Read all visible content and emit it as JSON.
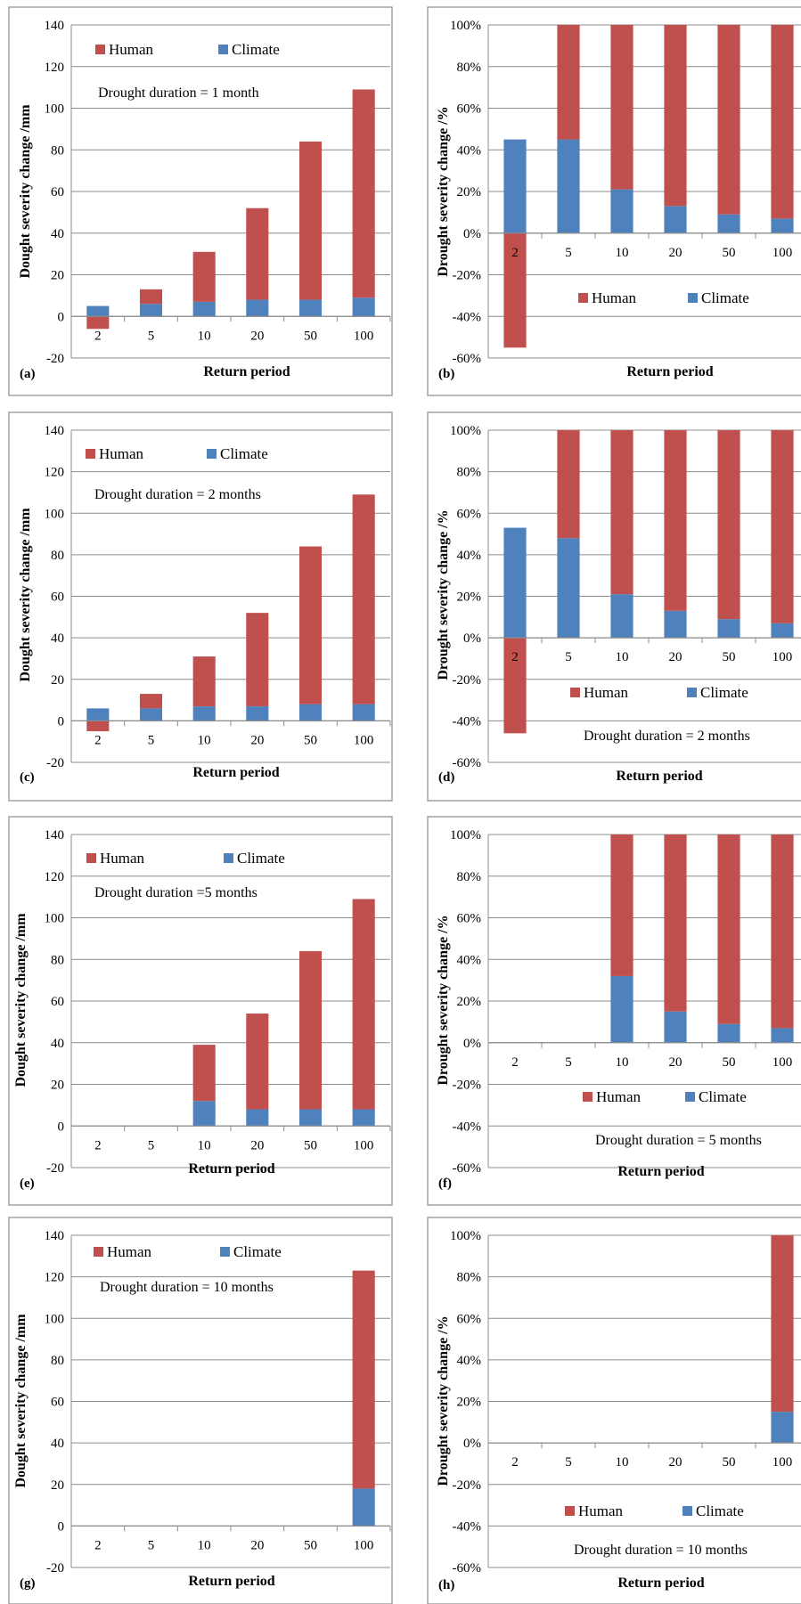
{
  "legend": {
    "human": "Human",
    "climate": "Climate"
  },
  "colors": {
    "human": "#C0504D",
    "climate": "#4F81BD",
    "grid": "#8C8C8C"
  },
  "chart_data": [
    {
      "type": "bar",
      "stacked": true,
      "panel_label": "(a)",
      "categories": [
        "2",
        "5",
        "10",
        "20",
        "50",
        "100"
      ],
      "series": [
        {
          "name": "Climate",
          "values": [
            5,
            6,
            7,
            8,
            8,
            9
          ]
        },
        {
          "name": "Human",
          "values": [
            -6,
            7,
            24,
            44,
            76,
            100
          ]
        }
      ],
      "xlabel": "Return period",
      "ylabel": "Dought severity change /mm",
      "ylim": [
        -20,
        140
      ],
      "yticks": [
        "-20",
        "0",
        "20",
        "40",
        "60",
        "80",
        "100",
        "120",
        "140"
      ],
      "annotation": "Drought duration = 1 month",
      "legend_position": "top"
    },
    {
      "type": "bar",
      "stacked": true,
      "panel_label": "(b)",
      "categories": [
        "2",
        "5",
        "10",
        "20",
        "50",
        "100"
      ],
      "series": [
        {
          "name": "Climate",
          "values": [
            45,
            45,
            21,
            13,
            9,
            7
          ]
        },
        {
          "name": "Human",
          "values": [
            -55,
            55,
            79,
            87,
            91,
            93
          ]
        }
      ],
      "xlabel": "Return period",
      "ylabel": "Drought severity change  /%",
      "ylim": [
        -60,
        100
      ],
      "yticks": [
        "-60%",
        "-40%",
        "-20%",
        "0%",
        "20%",
        "40%",
        "60%",
        "80%",
        "100%"
      ],
      "annotation": "",
      "legend_position": "middle"
    },
    {
      "type": "bar",
      "stacked": true,
      "panel_label": "(c)",
      "categories": [
        "2",
        "5",
        "10",
        "20",
        "50",
        "100"
      ],
      "series": [
        {
          "name": "Climate",
          "values": [
            6,
            6,
            7,
            7,
            8,
            8
          ]
        },
        {
          "name": "Human",
          "values": [
            -5,
            7,
            24,
            45,
            76,
            101
          ]
        }
      ],
      "xlabel": "Return period",
      "ylabel": "Dought severity change /mm",
      "ylim": [
        -20,
        140
      ],
      "yticks": [
        "-20",
        "0",
        "20",
        "40",
        "60",
        "80",
        "100",
        "120",
        "140"
      ],
      "annotation": "Drought duration = 2 months",
      "legend_position": "top"
    },
    {
      "type": "bar",
      "stacked": true,
      "panel_label": "(d)",
      "categories": [
        "2",
        "5",
        "10",
        "20",
        "50",
        "100"
      ],
      "series": [
        {
          "name": "Climate",
          "values": [
            53,
            48,
            21,
            13,
            9,
            7
          ]
        },
        {
          "name": "Human",
          "values": [
            -46,
            52,
            79,
            87,
            91,
            93
          ]
        }
      ],
      "xlabel": "Return period",
      "ylabel": "Drought severity change  /%",
      "ylim": [
        -60,
        100
      ],
      "yticks": [
        "-60%",
        "-40%",
        "-20%",
        "0%",
        "20%",
        "40%",
        "60%",
        "80%",
        "100%"
      ],
      "annotation": "Drought duration = 2 months",
      "legend_position": "middle"
    },
    {
      "type": "bar",
      "stacked": true,
      "panel_label": "(e)",
      "categories": [
        "2",
        "5",
        "10",
        "20",
        "50",
        "100"
      ],
      "series": [
        {
          "name": "Climate",
          "values": [
            0,
            0,
            12,
            8,
            8,
            8
          ]
        },
        {
          "name": "Human",
          "values": [
            0,
            0,
            27,
            46,
            76,
            101
          ]
        }
      ],
      "xlabel": "Return period",
      "ylabel": "Dought severity change /mm",
      "ylim": [
        -20,
        140
      ],
      "yticks": [
        "-20",
        "0",
        "20",
        "40",
        "60",
        "80",
        "100",
        "120",
        "140"
      ],
      "annotation": "Drought duration =5 months",
      "legend_position": "top"
    },
    {
      "type": "bar",
      "stacked": true,
      "panel_label": "(f)",
      "categories": [
        "2",
        "5",
        "10",
        "20",
        "50",
        "100"
      ],
      "series": [
        {
          "name": "Climate",
          "values": [
            0,
            0,
            32,
            15,
            9,
            7
          ]
        },
        {
          "name": "Human",
          "values": [
            0,
            0,
            68,
            85,
            91,
            93
          ]
        }
      ],
      "xlabel": "Return period",
      "ylabel": "Drought severity change  /%",
      "ylim": [
        -60,
        100
      ],
      "yticks": [
        "-60%",
        "-40%",
        "-20%",
        "0%",
        "20%",
        "40%",
        "60%",
        "80%",
        "100%"
      ],
      "annotation": "Drought duration = 5 months",
      "legend_position": "middle"
    },
    {
      "type": "bar",
      "stacked": true,
      "panel_label": "(g)",
      "categories": [
        "2",
        "5",
        "10",
        "20",
        "50",
        "100"
      ],
      "series": [
        {
          "name": "Climate",
          "values": [
            0,
            0,
            0,
            0,
            0,
            18
          ]
        },
        {
          "name": "Human",
          "values": [
            0,
            0,
            0,
            0,
            0,
            105
          ]
        }
      ],
      "xlabel": "Return period",
      "ylabel": "Dought severity change /mm",
      "ylim": [
        -20,
        140
      ],
      "yticks": [
        "-20",
        "0",
        "20",
        "40",
        "60",
        "80",
        "100",
        "120",
        "140"
      ],
      "annotation": "Drought duration = 10 months",
      "legend_position": "top"
    },
    {
      "type": "bar",
      "stacked": true,
      "panel_label": "(h)",
      "categories": [
        "2",
        "5",
        "10",
        "20",
        "50",
        "100"
      ],
      "series": [
        {
          "name": "Climate",
          "values": [
            0,
            0,
            0,
            0,
            0,
            15
          ]
        },
        {
          "name": "Human",
          "values": [
            0,
            0,
            0,
            0,
            0,
            85
          ]
        }
      ],
      "xlabel": "Return period",
      "ylabel": "Drought severity change  /%",
      "ylim": [
        -60,
        100
      ],
      "yticks": [
        "-60%",
        "-40%",
        "-20%",
        "0%",
        "20%",
        "40%",
        "60%",
        "80%",
        "100%"
      ],
      "annotation": "Drought duration = 10 months",
      "legend_position": "middle"
    }
  ]
}
